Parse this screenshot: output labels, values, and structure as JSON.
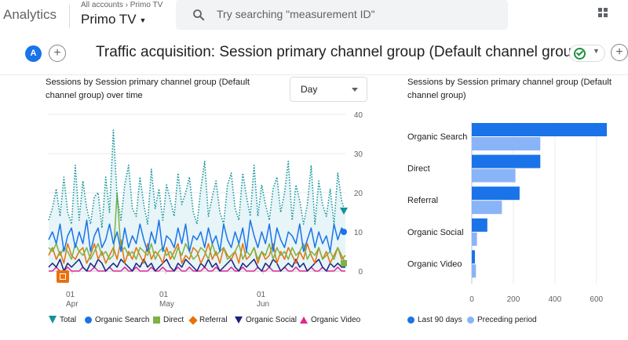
{
  "header": {
    "app_name": "Analytics",
    "breadcrumb": "All accounts › Primo TV",
    "property_name": "Primo TV",
    "search_placeholder": "Try searching \"measurement ID\""
  },
  "subheader": {
    "avatar_letter": "A",
    "report_title": "Traffic acquisition: Session primary channel group (Default channel group)"
  },
  "colors": {
    "total": "#12939a",
    "organic_search": "#1a73e8",
    "direct": "#7cb342",
    "referral": "#e8710a",
    "organic_social": "#1a237e",
    "organic_video": "#e52592",
    "last_90": "#1a73e8",
    "preceding": "#8ab4f8"
  },
  "line_card": {
    "title_line1": "Sessions by Session primary channel group (Default",
    "title_line2": "channel group) over time",
    "granularity": "Day",
    "legend": [
      "Total",
      "Organic Search",
      "Direct",
      "Referral",
      "Organic Social",
      "Organic Video"
    ]
  },
  "bar_card": {
    "title_line1": "Sessions by Session primary channel group (Default",
    "title_line2": "channel group)",
    "legend": [
      "Last 90 days",
      "Preceding period"
    ]
  },
  "chart_data": [
    {
      "type": "line",
      "x_tick_labels": [
        [
          "01",
          "Apr"
        ],
        [
          "01",
          "May"
        ],
        [
          "01",
          "Jun"
        ]
      ],
      "y_ticks": [
        0,
        10,
        20,
        30,
        40
      ],
      "ylim": [
        0,
        40
      ],
      "grid": true,
      "legend_position": "bottom",
      "series": [
        {
          "name": "Total",
          "style": "dotted",
          "values": [
            13,
            16,
            21,
            14,
            24,
            15,
            12,
            27,
            13,
            23,
            16,
            12,
            19,
            20,
            11,
            24,
            15,
            36,
            19,
            13,
            22,
            27,
            16,
            14,
            24,
            17,
            12,
            26,
            16,
            21,
            13,
            22,
            18,
            14,
            25,
            17,
            20,
            24,
            15,
            12,
            21,
            28,
            14,
            19,
            23,
            15,
            12,
            22,
            25,
            16,
            13,
            25,
            19,
            14,
            27,
            14,
            22,
            17,
            13,
            21,
            24,
            15,
            20,
            28,
            13,
            22,
            18,
            12,
            17,
            27,
            12,
            23,
            17,
            14,
            21,
            12,
            25,
            18,
            15
          ]
        },
        {
          "name": "Organic Search",
          "style": "solid",
          "values": [
            8,
            10,
            7,
            12,
            5,
            9,
            11,
            6,
            10,
            7,
            13,
            5,
            9,
            11,
            6,
            8,
            12,
            7,
            10,
            5,
            11,
            6,
            9,
            7,
            12,
            8,
            5,
            10,
            7,
            13,
            5,
            9,
            8,
            6,
            11,
            7,
            12,
            5,
            9,
            8,
            10,
            6,
            11,
            7,
            9,
            5,
            12,
            8,
            6,
            10,
            7,
            11,
            5,
            13,
            9,
            6,
            10,
            7,
            12,
            5,
            11,
            8,
            6,
            10,
            9,
            7,
            12,
            5,
            8,
            11,
            6,
            10,
            7,
            9,
            5,
            12,
            8,
            11,
            10
          ]
        },
        {
          "name": "Direct",
          "style": "solid",
          "values": [
            6,
            5,
            7,
            4,
            6,
            5,
            3,
            7,
            5,
            4,
            6,
            3,
            5,
            7,
            4,
            5,
            3,
            4,
            20,
            5,
            6,
            4,
            5,
            3,
            6,
            5,
            4,
            7,
            3,
            5,
            6,
            4,
            5,
            3,
            6,
            4,
            7,
            5,
            3,
            4,
            6,
            5,
            3,
            7,
            4,
            5,
            6,
            3,
            4,
            5,
            7,
            3,
            5,
            4,
            6,
            3,
            5,
            4,
            7,
            3,
            6,
            4,
            5,
            3,
            6,
            4,
            5,
            7,
            3,
            5,
            4,
            6,
            3,
            4,
            5,
            3,
            6,
            4,
            2
          ]
        },
        {
          "name": "Referral",
          "style": "solid",
          "values": [
            4,
            6,
            3,
            5,
            2,
            7,
            4,
            3,
            5,
            6,
            2,
            4,
            7,
            3,
            5,
            2,
            4,
            6,
            3,
            8,
            2,
            5,
            3,
            6,
            4,
            2,
            7,
            3,
            5,
            4,
            2,
            6,
            3,
            5,
            7,
            2,
            4,
            3,
            6,
            5,
            2,
            4,
            7,
            3,
            5,
            2,
            6,
            4,
            3,
            5,
            2,
            7,
            3,
            4,
            6,
            2,
            5,
            3,
            4,
            7,
            2,
            5,
            3,
            6,
            4,
            2,
            5,
            3,
            7,
            4,
            2,
            6,
            3,
            5,
            2,
            4,
            6,
            3,
            4
          ]
        },
        {
          "name": "Organic Social",
          "style": "solid",
          "values": [
            1,
            2,
            1,
            3,
            0,
            2,
            1,
            2,
            3,
            1,
            0,
            2,
            1,
            3,
            2,
            0,
            1,
            2,
            1,
            3,
            2,
            1,
            0,
            2,
            1,
            3,
            1,
            2,
            0,
            1,
            2,
            3,
            1,
            0,
            2,
            1,
            3,
            2,
            1,
            0,
            2,
            1,
            3,
            1,
            2,
            0,
            1,
            2,
            3,
            1,
            0,
            2,
            1,
            2,
            3,
            1,
            0,
            2,
            1,
            3,
            2,
            0,
            1,
            2,
            1,
            3,
            1,
            2,
            0,
            1,
            2,
            3,
            1,
            0,
            2,
            1,
            2,
            1,
            1
          ]
        },
        {
          "name": "Organic Video",
          "style": "solid",
          "values": [
            0,
            0,
            1,
            0,
            0,
            1,
            0,
            0,
            0,
            1,
            0,
            0,
            1,
            0,
            0,
            0,
            1,
            0,
            0,
            0,
            1,
            0,
            0,
            1,
            0,
            0,
            0,
            1,
            0,
            0,
            1,
            0,
            0,
            0,
            1,
            0,
            0,
            1,
            0,
            0,
            0,
            1,
            0,
            0,
            1,
            0,
            0,
            0,
            1,
            0,
            0,
            1,
            0,
            0,
            0,
            1,
            0,
            0,
            1,
            0,
            0,
            0,
            1,
            0,
            0,
            1,
            0,
            0,
            0,
            1,
            0,
            0,
            1,
            0,
            0,
            0,
            1,
            0,
            0
          ]
        }
      ]
    },
    {
      "type": "bar",
      "orientation": "horizontal",
      "categories": [
        "Organic Search",
        "Direct",
        "Referral",
        "Organic Social",
        "Organic Video"
      ],
      "series": [
        {
          "name": "Last 90 days",
          "values": [
            650,
            330,
            230,
            75,
            15
          ]
        },
        {
          "name": "Preceding period",
          "values": [
            330,
            210,
            145,
            25,
            20
          ]
        }
      ],
      "x_ticks": [
        0,
        200,
        400,
        600
      ],
      "xlim": [
        0,
        760
      ],
      "legend_position": "bottom"
    }
  ]
}
